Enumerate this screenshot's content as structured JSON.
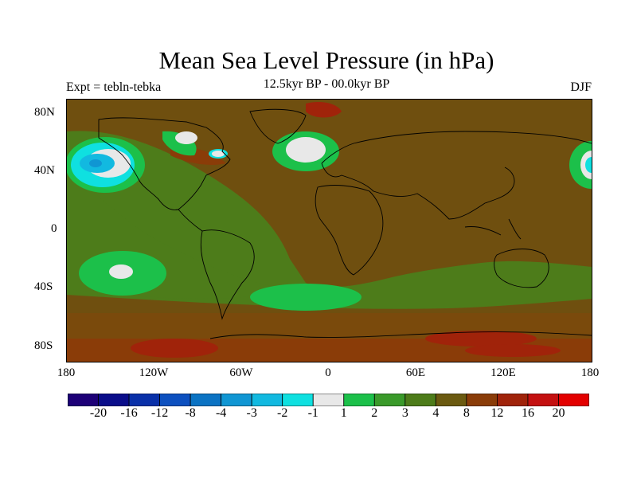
{
  "header": {
    "title": "Mean Sea Level Pressure (in hPa)",
    "left_label": "Expt = tebln-tebka",
    "center_label": "12.5kyr BP - 00.0kyr BP",
    "right_label": "DJF"
  },
  "axes": {
    "y_ticks": [
      "80N",
      "40N",
      "0",
      "40S",
      "80S"
    ],
    "x_ticks": [
      "180",
      "120W",
      "60W",
      "0",
      "60E",
      "120E",
      "180"
    ]
  },
  "legend": {
    "levels": [
      "-20",
      "-16",
      "-12",
      "-8",
      "-4",
      "-3",
      "-2",
      "-1",
      "1",
      "2",
      "3",
      "4",
      "8",
      "12",
      "16",
      "20"
    ],
    "colors": [
      "#1d0077",
      "#0a0d8a",
      "#0930a8",
      "#0d50bf",
      "#0b73c3",
      "#1096d3",
      "#12b9e0",
      "#0fe0e0",
      "#e8e8e8",
      "#1cc04a",
      "#3a9a2a",
      "#4d7c1a",
      "#6b5a10",
      "#8a3c08",
      "#a0230a",
      "#c41010",
      "#e30000"
    ]
  }
}
